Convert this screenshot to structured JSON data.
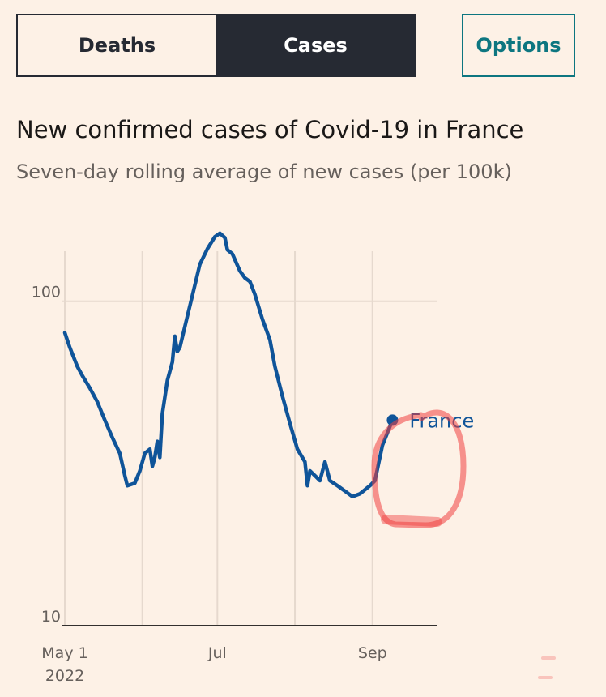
{
  "controls": {
    "tabs": [
      {
        "label": "Deaths",
        "active": false
      },
      {
        "label": "Cases",
        "active": true
      }
    ],
    "options_label": "Options"
  },
  "colors": {
    "background": "#fdf1e6",
    "series": "#0f5499",
    "annotation": "#f04040",
    "dark": "#262a33",
    "teal": "#0d7680"
  },
  "chart_data": {
    "type": "line",
    "title": "New confirmed cases of Covid-19 in France",
    "subtitle": "Seven-day rolling average of new cases (per 100k)",
    "y_scale": "log",
    "ylim": [
      10,
      160
    ],
    "y_ticks": [
      {
        "value": 10,
        "label": "10"
      },
      {
        "value": 100,
        "label": "100"
      }
    ],
    "xlim": [
      "2022-05-01",
      "2022-09-27"
    ],
    "x_gridlines": [
      "2022-05-01",
      "2022-06-01",
      "2022-07-01",
      "2022-08-01",
      "2022-09-01"
    ],
    "x_ticks": [
      {
        "date": "2022-05-01",
        "label": "May 1",
        "sublabel": "2022"
      },
      {
        "date": "2022-07-01",
        "label": "Jul",
        "sublabel": ""
      },
      {
        "date": "2022-09-01",
        "label": "Sep",
        "sublabel": ""
      }
    ],
    "grid": true,
    "series": [
      {
        "name": "France",
        "points": [
          [
            "2022-05-01",
            80
          ],
          [
            "2022-05-03",
            72
          ],
          [
            "2022-05-06",
            63
          ],
          [
            "2022-05-08",
            59
          ],
          [
            "2022-05-11",
            54
          ],
          [
            "2022-05-14",
            49
          ],
          [
            "2022-05-17",
            43
          ],
          [
            "2022-05-20",
            38
          ],
          [
            "2022-05-23",
            34
          ],
          [
            "2022-05-25",
            29
          ],
          [
            "2022-05-26",
            27
          ],
          [
            "2022-05-29",
            27.5
          ],
          [
            "2022-05-31",
            30
          ],
          [
            "2022-06-02",
            34
          ],
          [
            "2022-06-04",
            35
          ],
          [
            "2022-06-05",
            31
          ],
          [
            "2022-06-06",
            33
          ],
          [
            "2022-06-07",
            37
          ],
          [
            "2022-06-08",
            33
          ],
          [
            "2022-06-09",
            45
          ],
          [
            "2022-06-11",
            57
          ],
          [
            "2022-06-13",
            65
          ],
          [
            "2022-06-14",
            78
          ],
          [
            "2022-06-15",
            70
          ],
          [
            "2022-06-16",
            72
          ],
          [
            "2022-06-19",
            90
          ],
          [
            "2022-06-21",
            104
          ],
          [
            "2022-06-24",
            130
          ],
          [
            "2022-06-27",
            145
          ],
          [
            "2022-06-30",
            158
          ],
          [
            "2022-07-02",
            162
          ],
          [
            "2022-07-04",
            157
          ],
          [
            "2022-07-05",
            144
          ],
          [
            "2022-07-07",
            140
          ],
          [
            "2022-07-10",
            124
          ],
          [
            "2022-07-12",
            118
          ],
          [
            "2022-07-14",
            115
          ],
          [
            "2022-07-16",
            105
          ],
          [
            "2022-07-19",
            88
          ],
          [
            "2022-07-22",
            76
          ],
          [
            "2022-07-24",
            63
          ],
          [
            "2022-07-27",
            51
          ],
          [
            "2022-07-30",
            42
          ],
          [
            "2022-08-02",
            35
          ],
          [
            "2022-08-05",
            32
          ],
          [
            "2022-08-06",
            27
          ],
          [
            "2022-08-07",
            30
          ],
          [
            "2022-08-09",
            29
          ],
          [
            "2022-08-11",
            28
          ],
          [
            "2022-08-13",
            32
          ],
          [
            "2022-08-15",
            28
          ],
          [
            "2022-08-18",
            27
          ],
          [
            "2022-08-21",
            26
          ],
          [
            "2022-08-24",
            25
          ],
          [
            "2022-08-27",
            25.5
          ],
          [
            "2022-08-31",
            27
          ],
          [
            "2022-09-02",
            28
          ],
          [
            "2022-09-05",
            36
          ],
          [
            "2022-09-09",
            43
          ]
        ]
      }
    ],
    "series_label": "France"
  }
}
